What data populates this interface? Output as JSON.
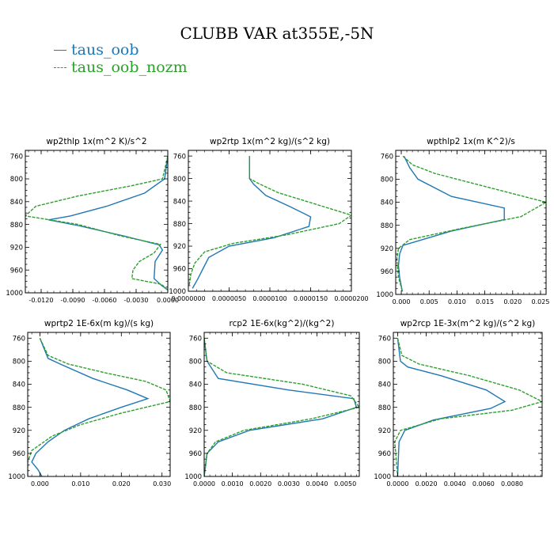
{
  "figure": {
    "title": "CLUBB VAR at355E,-5N",
    "legend": [
      {
        "label": "taus_oob",
        "color": "#1f77b4"
      },
      {
        "label": "taus_oob_nozm",
        "color": "#2ca02c"
      }
    ]
  },
  "chart_data": [
    {
      "type": "line",
      "title": "wp2thlp   1x(m^2 K)/s^2",
      "xlim": [
        -0.0135,
        0.0
      ],
      "ylim": [
        1000,
        750
      ],
      "xticks": [
        "-0.0120",
        "-0.0090",
        "-0.0060",
        "-0.0030",
        "0.0000"
      ],
      "xtick_values": [
        -0.012,
        -0.009,
        -0.006,
        -0.003,
        0.0
      ],
      "yticks": [
        "760",
        "800",
        "840",
        "880",
        "920",
        "960",
        "1000"
      ],
      "series": [
        {
          "name": "taus_oob",
          "color": "#1f77b4",
          "style": "solid",
          "x": [
            0.0,
            -0.0003,
            -0.0022,
            -0.0058,
            -0.0092,
            -0.0113,
            -0.0085,
            -0.0042,
            -0.0008,
            -0.0005,
            -0.0012,
            -0.0013,
            -0.0006,
            0.0
          ],
          "y": [
            760,
            800,
            825,
            848,
            865,
            872,
            882,
            900,
            916,
            925,
            945,
            975,
            987,
            995
          ]
        },
        {
          "name": "taus_oob_nozm",
          "color": "#2ca02c",
          "style": "dashed",
          "x": [
            0.0,
            -0.0005,
            -0.0034,
            -0.0085,
            -0.0125,
            -0.0135,
            -0.0085,
            -0.0045,
            -0.0007,
            -0.0013,
            -0.0027,
            -0.0033,
            -0.0034,
            -0.0006,
            0.0
          ],
          "y": [
            760,
            800,
            812,
            830,
            848,
            865,
            880,
            900,
            915,
            930,
            945,
            960,
            975,
            985,
            995
          ]
        }
      ]
    },
    {
      "type": "line",
      "title": "wp2rtp   1x(m^2 kg)/(s^2 kg)",
      "xlim": [
        0.0,
        2e-05
      ],
      "ylim": [
        1000,
        750
      ],
      "xticks": [
        "0.0000000",
        "0.0000050",
        "0.0000100",
        "0.0000150",
        "0.0000200"
      ],
      "xtick_values": [
        0.0,
        5e-06,
        1e-05,
        1.5e-05,
        2e-05
      ],
      "yticks": [
        "760",
        "800",
        "840",
        "880",
        "920",
        "960",
        "1000"
      ],
      "series": [
        {
          "name": "taus_oob",
          "color": "#1f77b4",
          "style": "solid",
          "x": [
            7.5e-06,
            7.5e-06,
            8e-06,
            9.5e-06,
            1.25e-05,
            1.5e-05,
            1.48e-05,
            1.05e-05,
            5e-06,
            2.5e-06,
            1.8e-06,
            1.2e-06,
            5e-07
          ],
          "y": [
            760,
            800,
            810,
            830,
            850,
            868,
            885,
            905,
            920,
            940,
            960,
            977,
            995
          ]
        },
        {
          "name": "taus_oob_nozm",
          "color": "#2ca02c",
          "style": "dashed",
          "x": [
            7.5e-06,
            7.5e-06,
            8.5e-06,
            1.1e-05,
            1.55e-05,
            2e-05,
            1.85e-05,
            1.2e-05,
            5.5e-06,
            2e-06,
            8e-07,
            3e-07,
            1e-07
          ],
          "y": [
            760,
            800,
            808,
            825,
            845,
            865,
            880,
            900,
            915,
            930,
            950,
            970,
            990
          ]
        }
      ]
    },
    {
      "type": "line",
      "title": "wpthlp2   1x(m K^2)/s",
      "xlim": [
        -0.001,
        0.026
      ],
      "ylim": [
        1000,
        750
      ],
      "xticks": [
        "0.000",
        "0.005",
        "0.010",
        "0.015",
        "0.020",
        "0.025"
      ],
      "xtick_values": [
        0.0,
        0.005,
        0.01,
        0.015,
        0.02,
        0.025
      ],
      "yticks": [
        "760",
        "800",
        "840",
        "880",
        "920",
        "960",
        "1000"
      ],
      "series": [
        {
          "name": "taus_oob",
          "color": "#1f77b4",
          "style": "solid",
          "x": [
            0.0005,
            0.001,
            0.0015,
            0.003,
            0.009,
            0.0185,
            0.0185,
            0.009,
            0.0003,
            -0.0003,
            -0.0005,
            -0.0003,
            0.0002
          ],
          "y": [
            760,
            770,
            780,
            800,
            830,
            850,
            870,
            890,
            915,
            930,
            950,
            970,
            995
          ]
        },
        {
          "name": "taus_oob_nozm",
          "color": "#2ca02c",
          "style": "dashed",
          "x": [
            0.0003,
            0.002,
            0.006,
            0.014,
            0.026,
            0.0215,
            0.011,
            0.0015,
            -0.0005,
            -0.0008,
            -0.0005,
            0.0002
          ],
          "y": [
            760,
            775,
            790,
            810,
            840,
            865,
            885,
            905,
            920,
            940,
            970,
            995
          ]
        }
      ]
    },
    {
      "type": "line",
      "title": "wprtp2   1E-6x(m kg)/(s kg)",
      "xlim": [
        -0.003,
        0.032
      ],
      "ylim": [
        1000,
        750
      ],
      "xticks": [
        "0.000",
        "0.010",
        "0.020",
        "0.030"
      ],
      "xtick_values": [
        0.0,
        0.01,
        0.02,
        0.03
      ],
      "yticks": [
        "760",
        "800",
        "840",
        "880",
        "920",
        "960",
        "1000"
      ],
      "series": [
        {
          "name": "taus_oob",
          "color": "#1f77b4",
          "style": "solid",
          "x": [
            0.0,
            0.002,
            0.005,
            0.013,
            0.0215,
            0.0265,
            0.02,
            0.012,
            0.006,
            0.002,
            -0.001,
            -0.002,
            -0.0005,
            0.0005
          ],
          "y": [
            760,
            795,
            805,
            830,
            850,
            865,
            880,
            900,
            920,
            940,
            960,
            975,
            988,
            1000
          ]
        },
        {
          "name": "taus_oob_nozm",
          "color": "#2ca02c",
          "style": "dashed",
          "x": [
            0.0,
            0.002,
            0.007,
            0.016,
            0.026,
            0.031,
            0.032,
            0.02,
            0.01,
            0.003,
            -0.002,
            -0.003,
            -0.003
          ],
          "y": [
            760,
            790,
            805,
            820,
            835,
            850,
            870,
            890,
            910,
            930,
            955,
            975,
            1000
          ]
        }
      ]
    },
    {
      "type": "line",
      "title": "rcp2   1E-6x(kg^2)/(kg^2)",
      "xlim": [
        0.0,
        0.0055
      ],
      "ylim": [
        1000,
        750
      ],
      "xticks": [
        "0.0000",
        "0.0010",
        "0.0020",
        "0.0030",
        "0.0040",
        "0.0050"
      ],
      "xtick_values": [
        0.0,
        0.001,
        0.002,
        0.003,
        0.004,
        0.005
      ],
      "yticks": [
        "760",
        "800",
        "840",
        "880",
        "920",
        "960",
        "1000"
      ],
      "series": [
        {
          "name": "taus_oob",
          "color": "#1f77b4",
          "style": "solid",
          "x": [
            0.0,
            0.0001,
            0.0005,
            0.003,
            0.0053,
            0.0054,
            0.0042,
            0.0016,
            0.0005,
            0.0001,
            0.0
          ],
          "y": [
            760,
            800,
            830,
            850,
            865,
            880,
            900,
            920,
            940,
            960,
            1000
          ]
        },
        {
          "name": "taus_oob_nozm",
          "color": "#2ca02c",
          "style": "dashed",
          "x": [
            0.0,
            0.0001,
            0.0008,
            0.0035,
            0.0052,
            0.0055,
            0.0038,
            0.0014,
            0.0004,
            0.0001,
            0.0
          ],
          "y": [
            760,
            800,
            820,
            840,
            860,
            880,
            900,
            920,
            940,
            960,
            1000
          ]
        }
      ]
    },
    {
      "type": "line",
      "title": "wp2rcp   1E-3x(m^2 kg)/(s^2 kg)",
      "xlim": [
        -0.0003,
        0.0101
      ],
      "ylim": [
        1000,
        750
      ],
      "xticks": [
        "0.0000",
        "0.0020",
        "0.0040",
        "0.0060",
        "0.0080"
      ],
      "xtick_values": [
        0.0,
        0.002,
        0.004,
        0.006,
        0.008
      ],
      "yticks": [
        "760",
        "800",
        "840",
        "880",
        "920",
        "960",
        "1000"
      ],
      "series": [
        {
          "name": "taus_oob",
          "color": "#1f77b4",
          "style": "solid",
          "x": [
            0.0,
            0.0002,
            0.0007,
            0.003,
            0.0062,
            0.0075,
            0.0065,
            0.0025,
            0.0005,
            0.0001,
            0.0
          ],
          "y": [
            760,
            800,
            810,
            825,
            850,
            870,
            882,
            902,
            920,
            940,
            1000
          ]
        },
        {
          "name": "taus_oob_nozm",
          "color": "#2ca02c",
          "style": "dashed",
          "x": [
            0.0,
            0.0003,
            0.0015,
            0.005,
            0.0085,
            0.0101,
            0.008,
            0.003,
            0.0002,
            -0.0002,
            0.0
          ],
          "y": [
            760,
            790,
            805,
            825,
            850,
            870,
            885,
            900,
            920,
            940,
            1000
          ]
        }
      ]
    }
  ]
}
